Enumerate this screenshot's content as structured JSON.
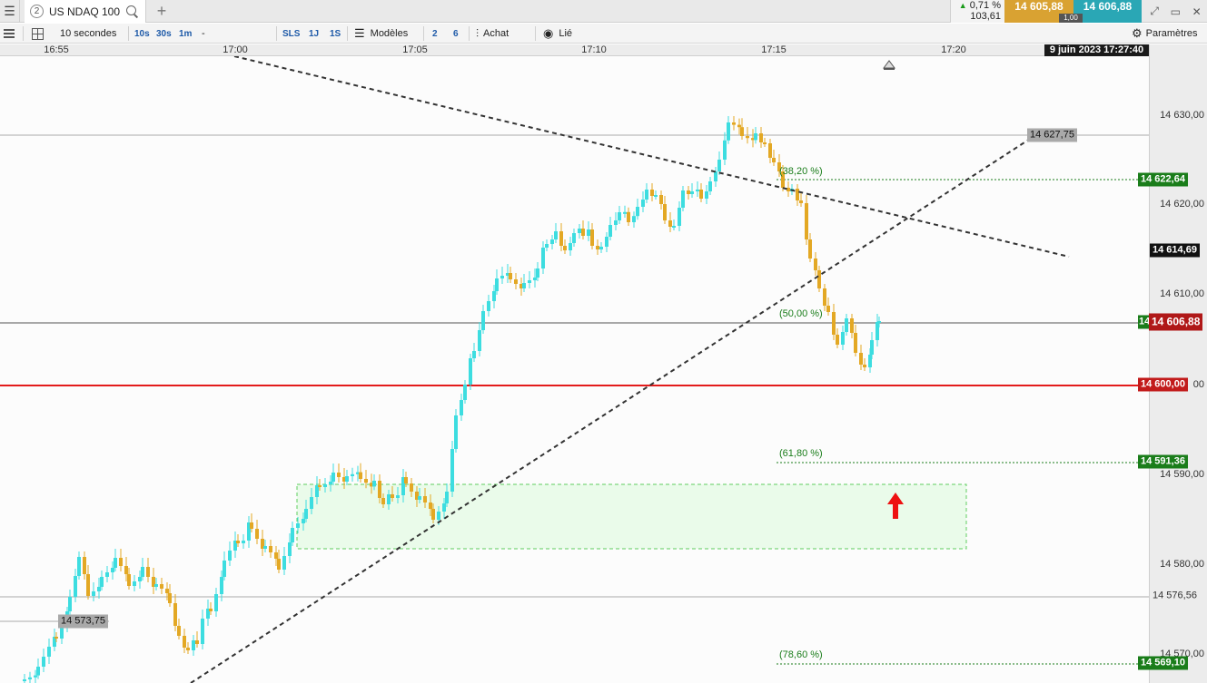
{
  "tabbar": {
    "instrument_number": "2",
    "instrument_name": "US NDAQ 100",
    "add_label": "+",
    "quote_pct": "0,71 %",
    "quote_var": "103,61",
    "bid": "14 605,88",
    "ask": "14 606,88",
    "quantity": "1,00"
  },
  "toolbar": {
    "period": "10 secondes",
    "btn_10s": "10s",
    "btn_30s": "30s",
    "btn_1m": "1m",
    "dash": "-",
    "btn_sls": "SLS",
    "btn_1j": "1J",
    "btn_1s": "1S",
    "models_label": "Modèles",
    "btn_2": "2",
    "btn_6": "6",
    "buy_label": "Achat",
    "linked_label": "Lié",
    "settings_label": "Paramètres"
  },
  "timeaxis": {
    "labels": [
      "16:55",
      "17:00",
      "17:05",
      "17:10",
      "17:15",
      "17:20"
    ],
    "date": "9 juin 2023 17:27:40"
  },
  "priceaxis": {
    "labels": [
      "14 630,00",
      "14 620,00",
      "14 610,00",
      "00",
      "14 590,00",
      "14 580,00",
      "14 570,00"
    ]
  },
  "tags": {
    "fib_382": "14 622,64",
    "current": "14 614,69",
    "fib_50": "14 606,88",
    "support": "14 600,00",
    "fib_618": "14 591,36",
    "level_low": "14 576,56",
    "fib_786": "14 569,10",
    "high_marker": "14 627,75",
    "low_marker": "14 573,75",
    "green_stub": "14"
  },
  "fib_labels": {
    "f382": "(38,20 %)",
    "f50": "(50,00 %)",
    "f618": "(61,80 %)",
    "f786": "(78,60 %)"
  },
  "colors": {
    "up_candle": "#3ddde0",
    "down_candle": "#e3a824",
    "support_line": "#e31b1b",
    "fib_line": "#1a7d1a",
    "zone_fill": "#eafbea",
    "zone_border": "#5fce5f"
  },
  "icons": {
    "menu": "hamburger-icon",
    "search": "search-icon",
    "layout": "grid-icon",
    "models": "sliders-icon",
    "buy": "buy-chart-icon",
    "linked": "eye-icon",
    "settings": "gear-icon"
  }
}
